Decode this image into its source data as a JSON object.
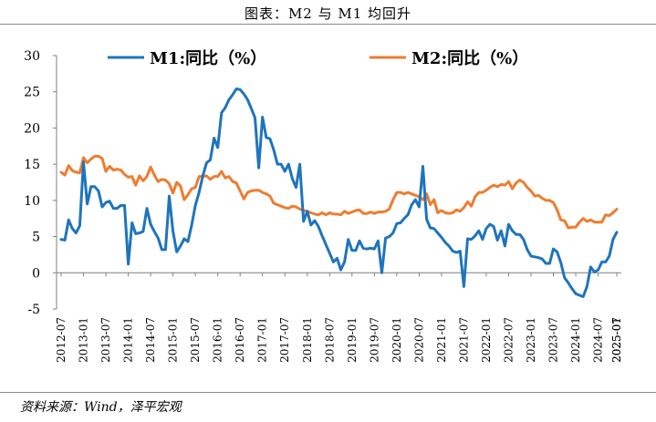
{
  "title": "图表：M2 与 M1 均回升",
  "source": "资料来源：Wind，泽平宏观",
  "colors": {
    "m1": "#1f74bd",
    "m2": "#ed7d31",
    "axis": "#7f7f7f"
  },
  "chart_data": {
    "type": "line",
    "title": "图表：M2 与 M1 均回升",
    "xlabel": "",
    "ylabel": "",
    "ylim": [
      -5,
      30
    ],
    "yticks": [
      -5,
      0,
      5,
      10,
      15,
      20,
      25,
      30
    ],
    "grid": false,
    "legend_position": "top",
    "x_start": "2012-07",
    "x_tick_labels": [
      "2012-07",
      "2013-01",
      "2013-07",
      "2014-01",
      "2014-07",
      "2015-01",
      "2015-07",
      "2016-01",
      "2016-07",
      "2017-01",
      "2017-07",
      "2018-01",
      "2018-07",
      "2019-01",
      "2019-07",
      "2020-01",
      "2020-07",
      "2021-01",
      "2021-07",
      "2022-01",
      "2022-07",
      "2023-01",
      "2023-07",
      "2024-01",
      "2024-07",
      "2025-01",
      "2025-07"
    ],
    "series": [
      {
        "name": "M1:同比（%）",
        "color": "#1f74bd",
        "values": [
          4.6,
          4.5,
          7.3,
          6.1,
          5.5,
          6.5,
          15.3,
          9.5,
          11.9,
          11.9,
          11.3,
          9.1,
          9.7,
          9.9,
          8.9,
          8.9,
          9.3,
          9.3,
          1.2,
          6.9,
          5.4,
          5.5,
          5.7,
          8.9,
          6.7,
          5.7,
          4.8,
          3.2,
          3.2,
          10.6,
          5.7,
          2.9,
          3.7,
          4.7,
          4.3,
          6.6,
          9.3,
          11.1,
          13.4,
          15.2,
          15.6,
          18.6,
          17.3,
          22.1,
          22.8,
          23.9,
          24.6,
          25.4,
          25.3,
          24.7,
          23.9,
          22.7,
          21.4,
          14.5,
          21.5,
          18.7,
          18.5,
          17.0,
          15.0,
          15.0,
          14.0,
          15.0,
          13.0,
          11.8,
          15.0,
          7.1,
          8.5,
          6.6,
          7.2,
          6.4,
          5.1,
          3.9,
          2.7,
          1.5,
          2.0,
          0.4,
          1.5,
          4.6,
          3.1,
          3.1,
          4.4,
          3.4,
          3.3,
          3.4,
          3.3,
          4.4,
          0.0,
          4.8,
          5.0,
          5.5,
          6.8,
          6.9,
          7.5,
          8.0,
          9.4,
          10.1,
          9.1,
          14.7,
          7.4,
          6.2,
          6.1,
          5.5,
          4.9,
          4.2,
          3.7,
          3.0,
          2.8,
          3.0,
          -1.9,
          4.7,
          4.6,
          5.1,
          5.8,
          4.6,
          6.1,
          6.7,
          6.4,
          4.5,
          5.8,
          3.7,
          6.7,
          5.8,
          5.3,
          5.3,
          4.6,
          3.2,
          2.3,
          2.2,
          2.1,
          1.9,
          1.3,
          1.3,
          3.3,
          2.9,
          1.4,
          -0.7,
          -1.4,
          -2.2,
          -2.9,
          -3.1,
          -3.3,
          -1.9,
          0.8,
          0.1,
          0.4,
          1.5,
          1.5,
          2.3,
          4.6,
          5.6
        ]
      },
      {
        "name": "M2:同比（%）",
        "color": "#ed7d31",
        "values": [
          13.9,
          13.5,
          14.8,
          14.1,
          13.9,
          13.8,
          15.9,
          15.2,
          15.7,
          16.1,
          16.1,
          15.8,
          14.0,
          14.7,
          14.2,
          14.3,
          14.2,
          13.6,
          13.2,
          13.3,
          12.1,
          13.4,
          12.7,
          13.3,
          14.6,
          13.5,
          12.6,
          12.9,
          12.8,
          12.3,
          11.0,
          12.5,
          12.0,
          10.1,
          10.8,
          11.6,
          11.8,
          13.3,
          13.3,
          13.4,
          12.9,
          13.3,
          13.3,
          14.0,
          13.1,
          13.3,
          12.6,
          12.4,
          11.3,
          10.2,
          11.1,
          11.3,
          11.4,
          11.4,
          11.1,
          10.9,
          10.6,
          9.6,
          9.4,
          9.2,
          9.0,
          8.9,
          9.2,
          9.1,
          8.8,
          8.6,
          8.5,
          8.3,
          8.1,
          8.0,
          8.3,
          8.0,
          8.3,
          8.1,
          8.1,
          8.0,
          8.5,
          8.2,
          8.4,
          8.6,
          8.7,
          8.2,
          8.2,
          8.4,
          8.2,
          8.4,
          8.4,
          8.5,
          8.8,
          10.1,
          11.1,
          11.1,
          10.9,
          11.1,
          10.9,
          10.7,
          10.5,
          10.1,
          10.9,
          9.4,
          10.1,
          8.3,
          8.6,
          8.3,
          8.2,
          8.3,
          8.7,
          8.5,
          9.0,
          9.8,
          9.2,
          10.5,
          11.1,
          11.1,
          11.4,
          11.8,
          12.1,
          11.9,
          12.2,
          12.1,
          12.6,
          11.6,
          12.4,
          12.8,
          12.5,
          11.8,
          11.3,
          10.6,
          10.7,
          10.3,
          10.0,
          10.0,
          9.7,
          8.7,
          7.3,
          7.2,
          6.2,
          6.3,
          6.3,
          7.0,
          7.5,
          7.1,
          7.3,
          7.0,
          7.0,
          7.0,
          8.0,
          7.9,
          8.3,
          8.8
        ]
      }
    ]
  }
}
